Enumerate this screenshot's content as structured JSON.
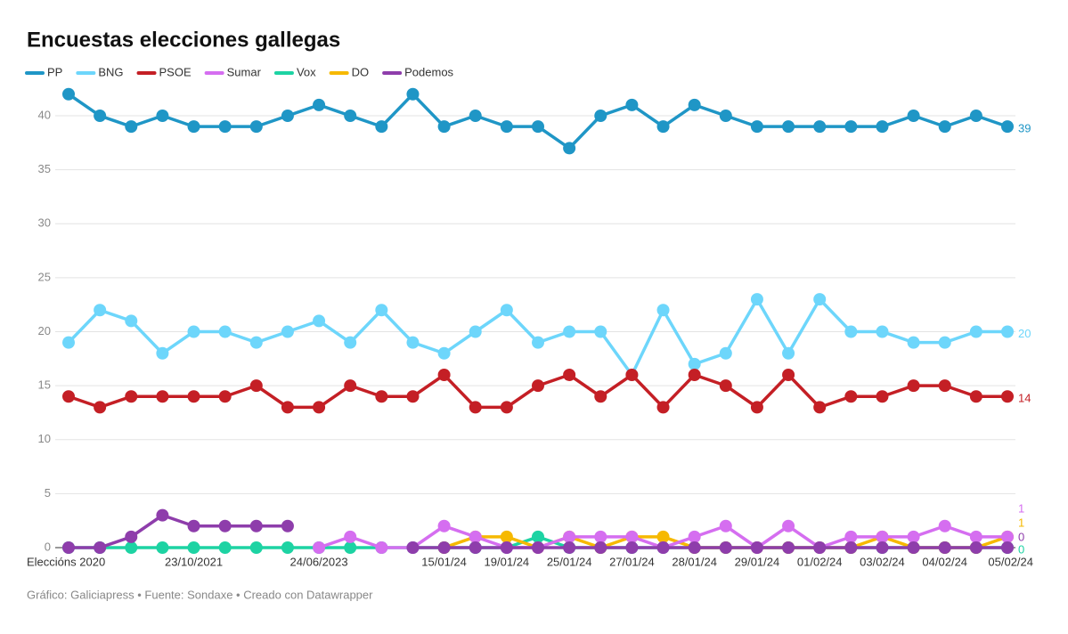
{
  "chart_data": {
    "type": "line",
    "title": "Encuestas elecciones gallegas",
    "source": "Gráfico: Galiciapress • Fuente: Sondaxe • Creado con Datawrapper",
    "categories": [
      "Eleccións 2020",
      null,
      null,
      null,
      "23/10/2021",
      null,
      null,
      null,
      "24/06/2023",
      null,
      null,
      null,
      "15/01/24",
      null,
      "19/01/24",
      null,
      "25/01/24",
      null,
      "27/01/24",
      null,
      "28/01/24",
      null,
      "29/01/24",
      null,
      "01/02/24",
      null,
      "03/02/24",
      null,
      "04/02/24",
      null,
      "05/02/24"
    ],
    "ylim": [
      0,
      42
    ],
    "yticks": [
      0,
      5,
      10,
      15,
      20,
      25,
      30,
      35,
      40
    ],
    "grid": true,
    "series": [
      {
        "name": "PP",
        "color": "#1f96c6",
        "values": [
          42,
          40,
          39,
          40,
          39,
          39,
          39,
          40,
          41,
          40,
          39,
          42,
          39,
          40,
          39,
          39,
          37,
          40,
          41,
          39,
          41,
          40,
          39,
          39,
          39,
          39,
          39,
          40,
          39,
          40,
          39
        ]
      },
      {
        "name": "BNG",
        "color": "#6dd6fb",
        "values": [
          19,
          22,
          21,
          18,
          20,
          20,
          19,
          20,
          21,
          19,
          22,
          19,
          18,
          20,
          22,
          19,
          20,
          20,
          16,
          22,
          17,
          18,
          23,
          18,
          23,
          20,
          20,
          19,
          19,
          20,
          20
        ]
      },
      {
        "name": "PSOE",
        "color": "#c41f25",
        "values": [
          14,
          13,
          14,
          14,
          14,
          14,
          15,
          13,
          13,
          15,
          14,
          14,
          16,
          13,
          13,
          15,
          16,
          14,
          16,
          13,
          16,
          15,
          13,
          16,
          13,
          14,
          14,
          15,
          15,
          14,
          14
        ]
      },
      {
        "name": "Sumar",
        "color": "#d56ef0",
        "values": [
          null,
          null,
          null,
          null,
          null,
          null,
          null,
          null,
          0,
          1,
          0,
          0,
          2,
          1,
          0,
          0,
          1,
          1,
          1,
          0,
          1,
          2,
          0,
          2,
          0,
          1,
          1,
          1,
          2,
          1,
          1
        ]
      },
      {
        "name": "Vox",
        "color": "#1dd3a3",
        "values": [
          0,
          0,
          0,
          0,
          0,
          0,
          0,
          0,
          0,
          0,
          0,
          0,
          0,
          0,
          0,
          1,
          0,
          0,
          0,
          0,
          0,
          0,
          0,
          0,
          0,
          0,
          0,
          0,
          0,
          0,
          0
        ]
      },
      {
        "name": "DO",
        "color": "#f6b900",
        "values": [
          null,
          null,
          null,
          null,
          null,
          null,
          null,
          null,
          null,
          null,
          null,
          null,
          0,
          1,
          1,
          0,
          1,
          0,
          1,
          1,
          0,
          0,
          0,
          0,
          0,
          0,
          1,
          0,
          0,
          0,
          1
        ]
      },
      {
        "name": "Podemos",
        "color": "#8e3dab",
        "values": [
          0,
          0,
          1,
          3,
          2,
          2,
          2,
          2,
          null,
          null,
          null,
          0,
          0,
          0,
          0,
          0,
          0,
          0,
          0,
          0,
          0,
          0,
          0,
          0,
          0,
          0,
          0,
          0,
          0,
          0,
          0
        ]
      }
    ]
  }
}
